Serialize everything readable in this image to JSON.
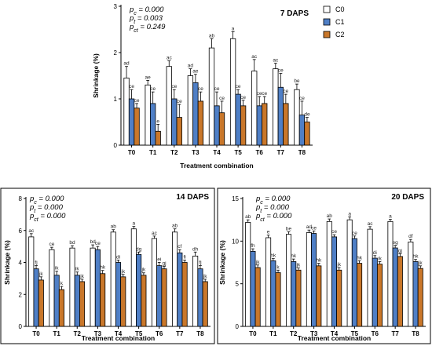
{
  "colors": {
    "C0": "#ffffff",
    "C1": "#4f7fc6",
    "C2": "#c9772a",
    "axis": "#000000"
  },
  "chart_data": [
    {
      "type": "bar",
      "title": "7 DAPS",
      "xlabel": "Treatment combination",
      "ylabel": "Shrinkage (%)",
      "ylim": [
        0,
        3
      ],
      "yticks": [
        0,
        1,
        2,
        3
      ],
      "categories": [
        "T0",
        "T1",
        "T2",
        "T3",
        "T4",
        "T5",
        "T6",
        "T7",
        "T8"
      ],
      "stats": [
        "p_c = 0.000",
        "p_t = 0.003",
        "p_ct = 0.249"
      ],
      "legend": {
        "entries": [
          "C0",
          "C1",
          "C2"
        ],
        "placement": "top-right"
      },
      "series": [
        {
          "name": "C0",
          "values": [
            1.45,
            1.3,
            1.7,
            1.5,
            2.1,
            2.3,
            1.6,
            1.65,
            1.2
          ],
          "errors": [
            0.25,
            0.1,
            0.12,
            0.15,
            0.2,
            0.15,
            0.25,
            0.12,
            0.12
          ],
          "letters": [
            "ad",
            "ae",
            "ac",
            "ad",
            "ab",
            "a",
            "ac",
            "ac",
            "be"
          ]
        },
        {
          "name": "C1",
          "values": [
            1.0,
            0.9,
            1.0,
            1.35,
            0.85,
            1.1,
            0.85,
            1.25,
            0.65
          ],
          "errors": [
            0.2,
            0.25,
            0.2,
            0.18,
            0.3,
            0.1,
            0.2,
            0.3,
            0.3
          ],
          "letters": [
            "ce",
            "ce",
            "ce",
            "ae",
            "ce",
            "ce",
            "ce",
            "ce",
            "ce"
          ]
        },
        {
          "name": "C2",
          "values": [
            0.8,
            0.3,
            0.6,
            0.95,
            0.7,
            0.85,
            0.9,
            0.9,
            0.5
          ],
          "errors": [
            0.1,
            0.15,
            0.28,
            0.2,
            0.25,
            0.12,
            0.15,
            0.2,
            0.1
          ],
          "letters": [
            "ce",
            "e",
            "ce",
            "ce",
            "ce",
            "ce",
            "ce",
            "ce",
            "de"
          ]
        }
      ]
    },
    {
      "type": "bar",
      "title": "14 DAPS",
      "xlabel": "Treatment combination",
      "ylabel": "Shrinkage (%)",
      "ylim": [
        0,
        8
      ],
      "yticks": [
        0,
        2,
        4,
        6,
        8
      ],
      "categories": [
        "T0",
        "T1",
        "T2",
        "T3",
        "T4",
        "T5",
        "T6",
        "T7",
        "T8"
      ],
      "stats": [
        "p_c = 0.000",
        "p_t = 0.000",
        "p_ct = 0.000"
      ],
      "series": [
        {
          "name": "C0",
          "values": [
            5.6,
            4.8,
            4.9,
            4.9,
            5.9,
            6.1,
            5.5,
            5.9,
            4.4
          ],
          "errors": [
            0.2,
            0.15,
            0.15,
            0.2,
            0.15,
            0.15,
            0.15,
            0.2,
            0.25
          ],
          "letters": [
            "ac",
            "ce",
            "bd",
            "bd",
            "ab",
            "a",
            "ac",
            "ab",
            "dh"
          ]
        },
        {
          "name": "C1",
          "values": [
            3.6,
            3.2,
            3.2,
            4.8,
            4.0,
            4.5,
            3.8,
            4.6,
            3.6
          ],
          "errors": [
            0.2,
            0.25,
            0.2,
            0.2,
            0.15,
            0.15,
            0.2,
            0.2,
            0.2
          ],
          "letters": [
            "fj",
            "ik",
            "ik",
            "ce",
            "di",
            "dg",
            "ei",
            "cf",
            "fj"
          ]
        },
        {
          "name": "C2",
          "values": [
            2.9,
            2.3,
            2.8,
            3.3,
            3.1,
            3.2,
            3.6,
            4.0,
            2.8
          ],
          "errors": [
            0.2,
            0.2,
            0.15,
            0.2,
            0.15,
            0.15,
            0.15,
            0.15,
            0.15
          ],
          "letters": [
            "jk",
            "k",
            "jk",
            "hk",
            "jk",
            "jk",
            "gj",
            "fi",
            "jk"
          ]
        }
      ]
    },
    {
      "type": "bar",
      "title": "20 DAPS",
      "xlabel": "Treatment combination",
      "ylabel": "Shrinkage (%)",
      "ylim": [
        0,
        15
      ],
      "yticks": [
        0,
        5,
        10,
        15
      ],
      "categories": [
        "T0",
        "T1",
        "T2",
        "T3",
        "T4",
        "T5",
        "T6",
        "T7",
        "T8"
      ],
      "stats": [
        "p_c = 0.000",
        "p_t = 0.000",
        "p_ct = 0.000"
      ],
      "series": [
        {
          "name": "C0",
          "values": [
            12.2,
            10.4,
            10.8,
            11.0,
            12.3,
            12.5,
            11.4,
            12.3,
            9.9
          ],
          "errors": [
            0.3,
            0.3,
            0.3,
            0.3,
            0.3,
            0.35,
            0.3,
            0.25,
            0.3
          ],
          "letters": [
            "ab",
            "e",
            "be",
            "ad",
            "ab",
            "a",
            "ac",
            "a",
            "df"
          ]
        },
        {
          "name": "C1",
          "values": [
            8.8,
            7.7,
            7.6,
            10.9,
            10.5,
            10.3,
            8.0,
            9.2,
            7.6
          ],
          "errors": [
            0.3,
            0.25,
            0.3,
            0.3,
            0.25,
            0.3,
            0.3,
            0.3,
            0.25
          ],
          "letters": [
            "fh",
            "hk",
            "hk",
            "ce",
            "ce",
            "ce",
            "di",
            "eg",
            "hk"
          ]
        },
        {
          "name": "C2",
          "values": [
            6.9,
            6.3,
            6.6,
            7.1,
            6.6,
            7.4,
            7.3,
            8.2,
            6.8
          ],
          "errors": [
            0.3,
            0.3,
            0.25,
            0.3,
            0.3,
            0.3,
            0.3,
            0.3,
            0.3
          ],
          "letters": [
            "jk",
            "k",
            "jk",
            "hk",
            "jk",
            "hk",
            "ik",
            "gj",
            "jk"
          ]
        }
      ]
    }
  ]
}
